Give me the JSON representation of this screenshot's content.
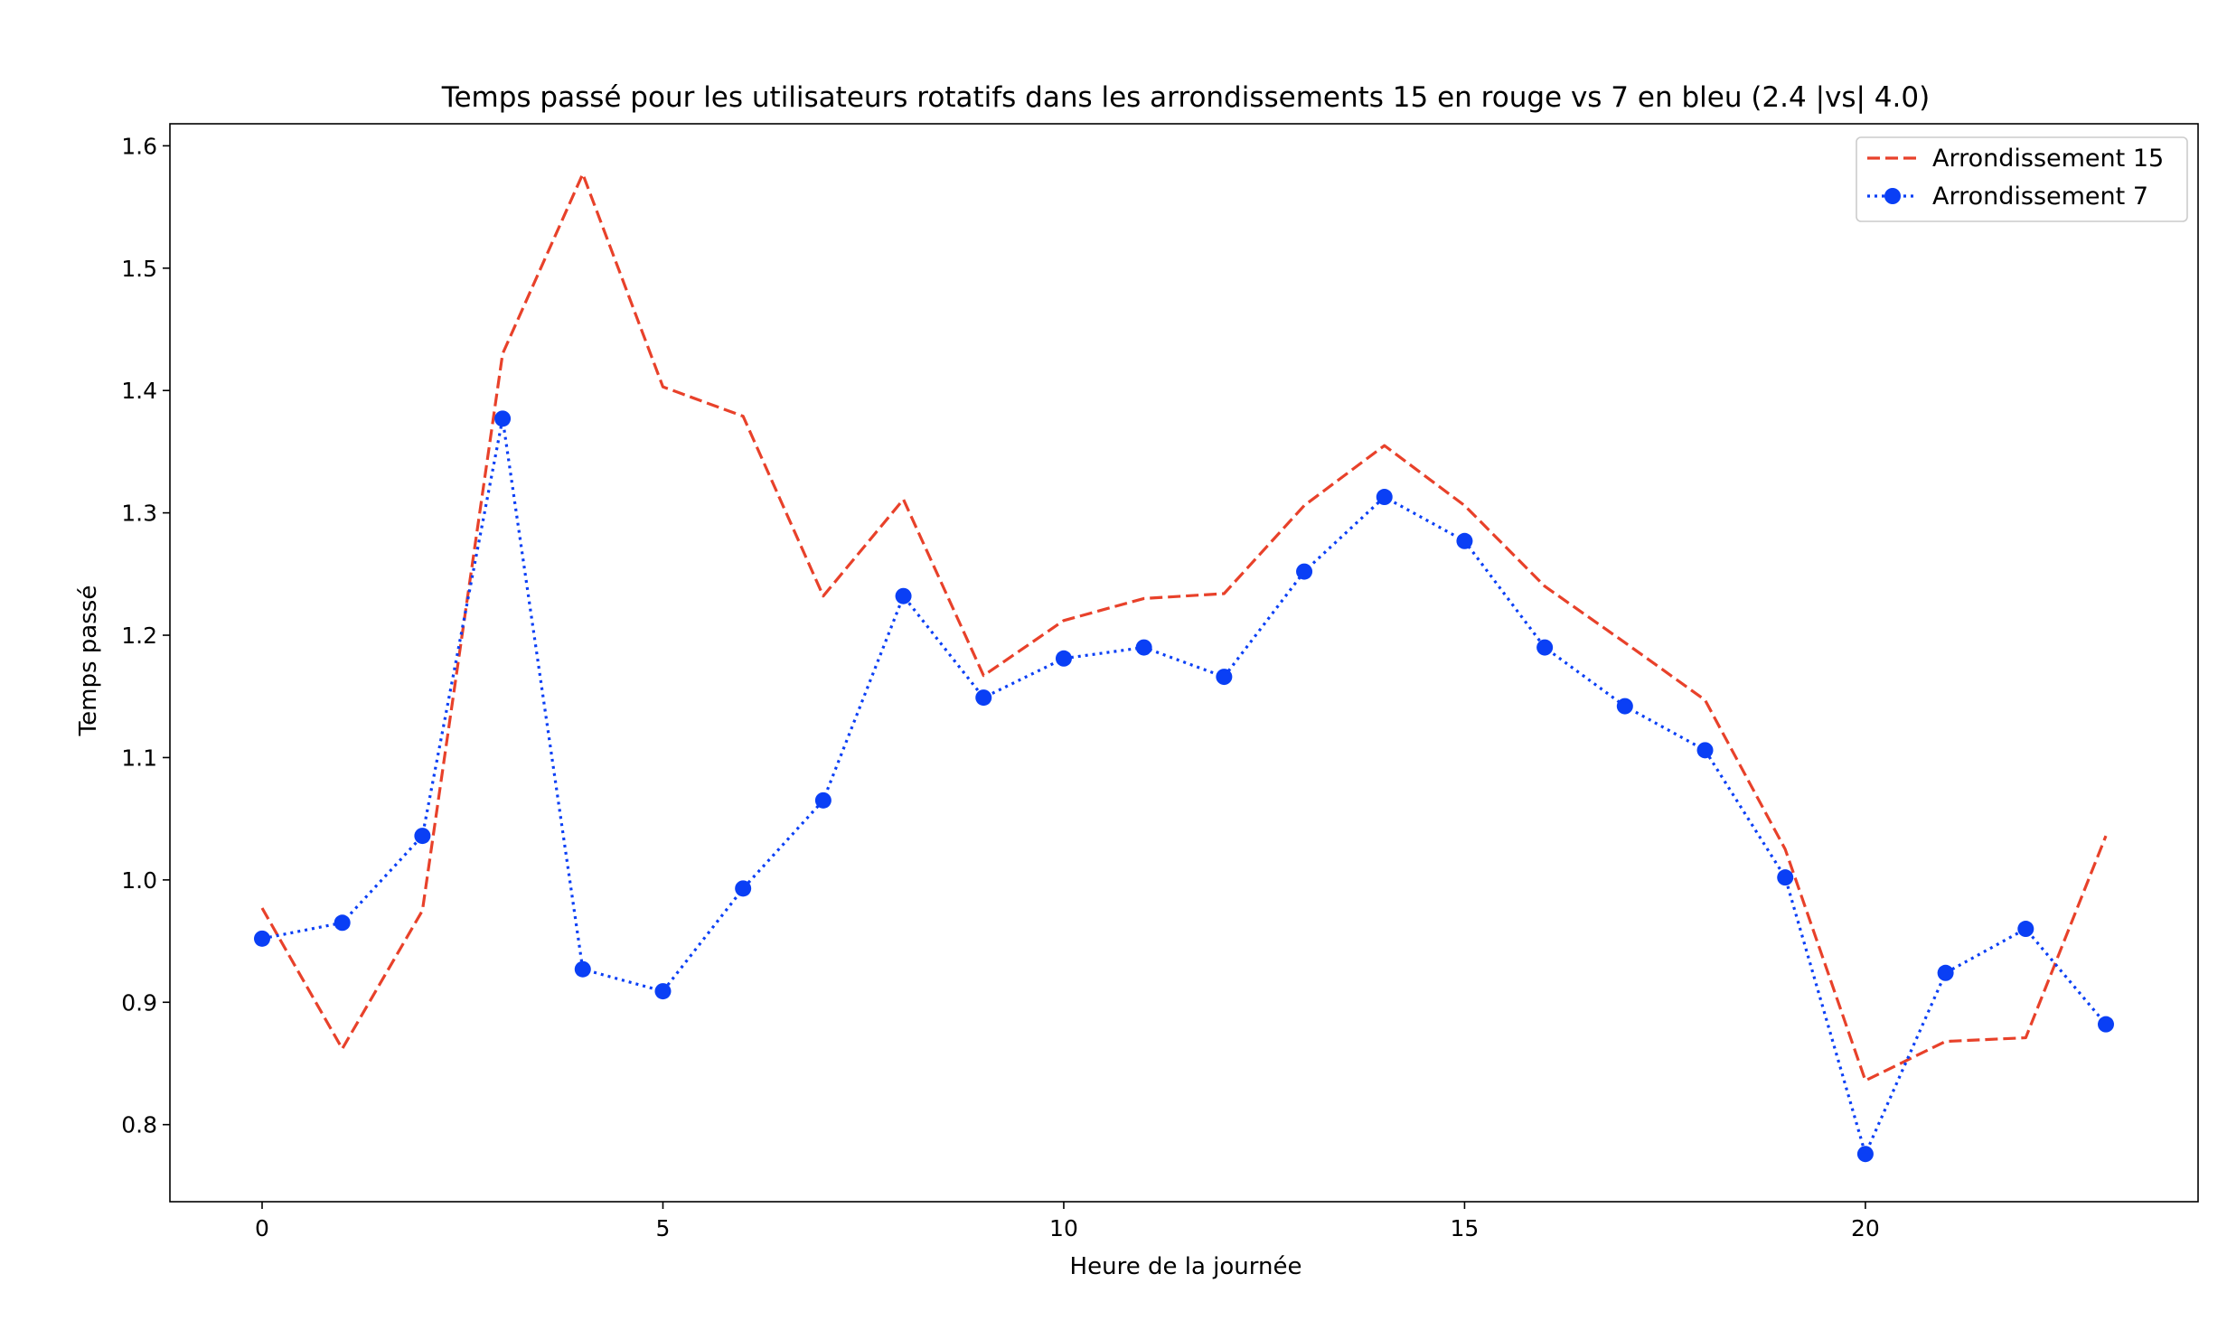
{
  "chart_data": {
    "type": "line",
    "title": "Temps passé pour les utilisateurs rotatifs dans les arrondissements 15 en rouge vs 7 en bleu (2.4 |vs| 4.0)",
    "xlabel": "Heure de la journée",
    "ylabel": "Temps passé",
    "xlim": [
      -1.15,
      24.15
    ],
    "ylim": [
      0.737,
      1.618
    ],
    "x_ticks": [
      0,
      5,
      10,
      15,
      20
    ],
    "y_ticks": [
      0.8,
      0.9,
      1.0,
      1.1,
      1.2,
      1.3,
      1.4,
      1.5,
      1.6
    ],
    "grid": false,
    "legend_position": "top-right",
    "x": [
      0,
      1,
      2,
      3,
      4,
      5,
      6,
      7,
      8,
      9,
      10,
      11,
      12,
      13,
      14,
      15,
      16,
      17,
      18,
      19,
      20,
      21,
      22,
      23
    ],
    "series": [
      {
        "name": "Arrondissement 15",
        "color": "#e8412a",
        "line_style": "dashed",
        "marker": "none",
        "values": [
          0.977,
          0.862,
          0.975,
          1.43,
          1.577,
          1.403,
          1.379,
          1.232,
          1.311,
          1.167,
          1.212,
          1.23,
          1.234,
          1.306,
          1.355,
          1.306,
          1.24,
          1.194,
          1.147,
          1.025,
          0.836,
          0.868,
          0.871,
          1.036
        ]
      },
      {
        "name": "Arrondissement 7",
        "color": "#0a3ff5",
        "line_style": "dotted",
        "marker": "circle",
        "values": [
          0.952,
          0.965,
          1.036,
          1.377,
          0.927,
          0.909,
          0.993,
          1.065,
          1.232,
          1.149,
          1.181,
          1.19,
          1.166,
          1.252,
          1.313,
          1.277,
          1.19,
          1.142,
          1.106,
          1.002,
          0.776,
          0.924,
          0.96,
          0.882
        ]
      }
    ]
  }
}
